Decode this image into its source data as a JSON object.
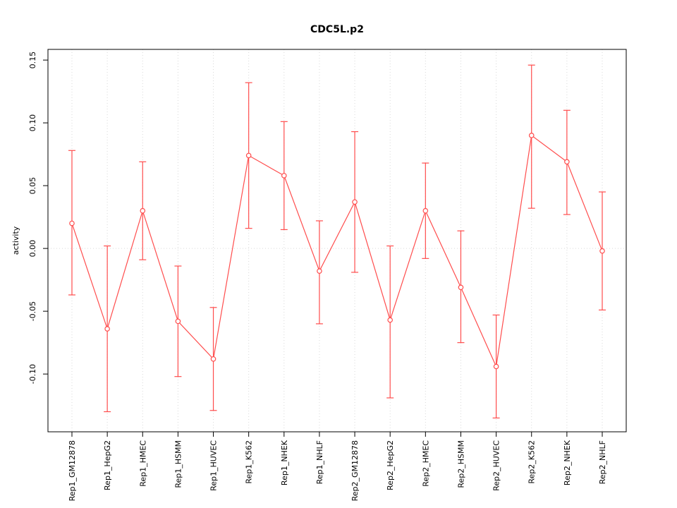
{
  "title": "CDC5L.p2",
  "chart_data": {
    "type": "line",
    "title": "CDC5L.p2",
    "xlabel": "",
    "ylabel": "activity",
    "categories": [
      "Rep1_GM12878",
      "Rep1_HepG2",
      "Rep1_HMEC",
      "Rep1_HSMM",
      "Rep1_HUVEC",
      "Rep1_K562",
      "Rep1_NHEK",
      "Rep1_NHLF",
      "Rep2_GM12878",
      "Rep2_HepG2",
      "Rep2_HMEC",
      "Rep2_HSMM",
      "Rep2_HUVEC",
      "Rep2_K562",
      "Rep2_NHEK",
      "Rep2_NHLF"
    ],
    "series": [
      {
        "name": "activity",
        "values": [
          0.02,
          -0.064,
          0.03,
          -0.058,
          -0.088,
          0.074,
          0.058,
          -0.018,
          0.037,
          -0.057,
          0.03,
          -0.031,
          -0.094,
          0.09,
          0.069,
          -0.002
        ],
        "upper": [
          0.078,
          0.002,
          0.069,
          -0.014,
          -0.047,
          0.132,
          0.101,
          0.022,
          0.093,
          0.002,
          0.068,
          0.014,
          -0.053,
          0.146,
          0.11,
          0.045
        ],
        "lower": [
          -0.037,
          -0.13,
          -0.009,
          -0.102,
          -0.129,
          0.016,
          0.015,
          -0.06,
          -0.019,
          -0.119,
          -0.008,
          -0.075,
          -0.135,
          0.032,
          0.027,
          -0.049
        ]
      }
    ],
    "ylim": [
      -0.146,
      0.1585
    ],
    "yticks": [
      0.15,
      0.1,
      0.05,
      0.0,
      -0.05,
      -0.1
    ],
    "ytick_labels": [
      "0.15",
      "0.10",
      "0.05",
      "0.00",
      "-0.05",
      "-0.10"
    ],
    "grid": true,
    "legend": "none",
    "colors": {
      "line": "#ff4d4d",
      "grid": "#d9d9d9",
      "axis": "#000000",
      "zero_line": "#d9d9d9",
      "point_fill": "#ffffff"
    }
  }
}
